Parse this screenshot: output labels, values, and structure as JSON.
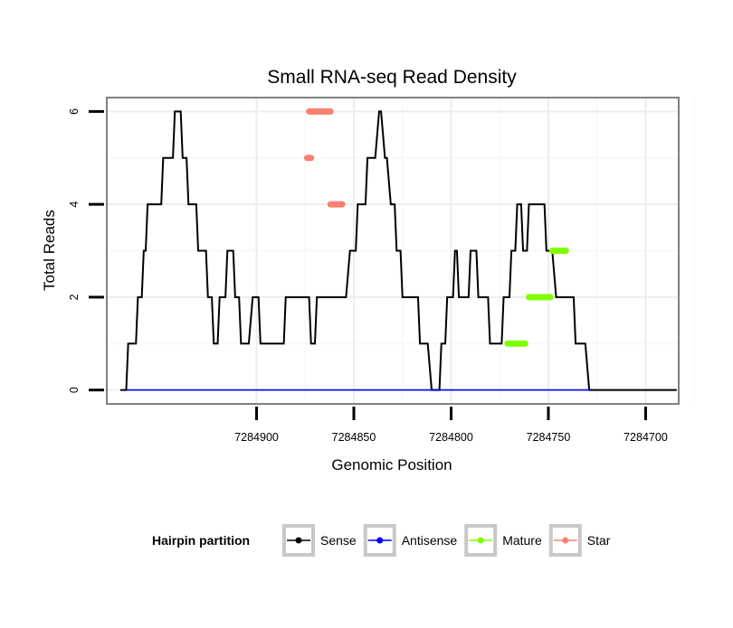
{
  "chart_data": {
    "type": "line",
    "title": "Small RNA-seq Read Density",
    "xlabel": "Genomic Position",
    "ylabel": "Total Reads",
    "xlim": [
      7284977,
      7284683
    ],
    "ylim": [
      -0.3,
      6.3
    ],
    "x_reversed": true,
    "grid": true,
    "x_ticks": [
      7284900,
      7284850,
      7284800,
      7284750,
      7284700
    ],
    "x_tick_labels": [
      "7284900",
      "7284850",
      "7284800",
      "7284750",
      "7284700"
    ],
    "y_ticks": [
      0,
      2,
      4,
      6
    ],
    "y_tick_labels": [
      "0",
      "2",
      "4",
      "6"
    ],
    "legend": {
      "title": "Hairpin partition",
      "placement": "bottom",
      "entries": [
        {
          "label": "Sense",
          "color": "#000000"
        },
        {
          "label": "Antisense",
          "color": "#0000ff"
        },
        {
          "label": "Mature",
          "color": "#7fff00"
        },
        {
          "label": "Star",
          "color": "#fa8072"
        }
      ]
    },
    "series": [
      {
        "name": "Sense",
        "color": "#000000",
        "x": [
          7284970,
          7284967,
          7284966,
          7284962,
          7284961,
          7284959,
          7284958,
          7284957,
          7284956,
          7284949,
          7284948,
          7284943,
          7284942,
          7284939,
          7284938,
          7284936,
          7284935,
          7284931,
          7284930,
          7284926,
          7284925,
          7284923,
          7284922,
          7284920,
          7284919,
          7284916,
          7284915,
          7284912,
          7284911,
          7284909,
          7284908,
          7284904,
          7284902,
          7284899,
          7284898,
          7284886,
          7284885,
          7284873,
          7284872,
          7284870,
          7284869,
          7284854,
          7284852,
          7284849,
          7284848,
          7284844,
          7284843,
          7284839,
          7284837,
          7284836,
          7284834,
          7284833,
          7284831,
          7284829,
          7284828,
          7284826,
          7284825,
          7284817,
          7284816,
          7284812,
          7284810,
          7284806,
          7284805,
          7284803,
          7284802,
          7284799,
          7284798,
          7284797,
          7284796,
          7284791,
          7284790,
          7284787,
          7284786,
          7284781,
          7284780,
          7284774,
          7284773,
          7284770,
          7284769,
          7284767,
          7284766,
          7284764,
          7284763,
          7284761,
          7284760,
          7284752,
          7284751,
          7284748,
          7284746,
          7284737,
          7284736,
          7284731,
          7284729,
          7284684
        ],
        "y": [
          0,
          0,
          1,
          1,
          2,
          2,
          3,
          3,
          4,
          4,
          5,
          5,
          6,
          6,
          5,
          5,
          4,
          4,
          3,
          3,
          2,
          2,
          1,
          1,
          2,
          2,
          3,
          3,
          2,
          2,
          1,
          1,
          2,
          2,
          1,
          1,
          2,
          2,
          1,
          1,
          2,
          2,
          3,
          3,
          4,
          4,
          5,
          5,
          6,
          6,
          5,
          5,
          4,
          4,
          3,
          3,
          2,
          2,
          1,
          1,
          0,
          0,
          1,
          1,
          2,
          2,
          3,
          3,
          2,
          2,
          3,
          3,
          2,
          2,
          1,
          1,
          2,
          2,
          3,
          3,
          4,
          4,
          3,
          3,
          4,
          4,
          3,
          3,
          2,
          2,
          1,
          1,
          0,
          0
        ]
      },
      {
        "name": "Antisense",
        "color": "#0000ff",
        "x": [
          7284967,
          7284729
        ],
        "y": [
          0,
          0
        ]
      },
      {
        "name": "Mature",
        "color": "#7fff00",
        "segments": [
          {
            "x": [
              7284771,
              7284762
            ],
            "y": 1
          },
          {
            "x": [
              7284760,
              7284749
            ],
            "y": 2
          },
          {
            "x": [
              7284748,
              7284741
            ],
            "y": 3
          }
        ]
      },
      {
        "name": "Star",
        "color": "#fa8072",
        "segments": [
          {
            "x": [
              7284874,
              7284872
            ],
            "y": 5
          },
          {
            "x": [
              7284873,
              7284862
            ],
            "y": 6
          },
          {
            "x": [
              7284862,
              7284856
            ],
            "y": 4
          }
        ]
      }
    ]
  }
}
